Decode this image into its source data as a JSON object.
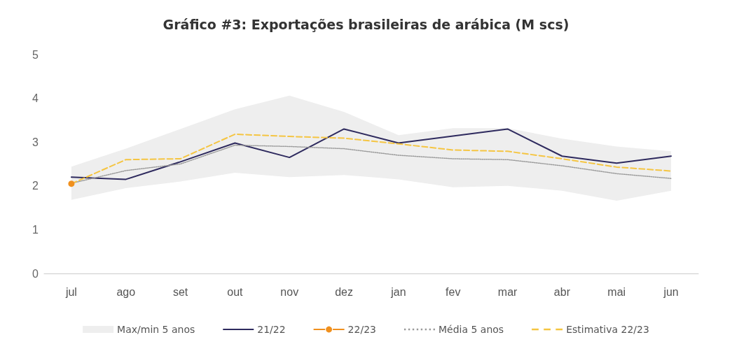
{
  "chart_data": {
    "type": "line",
    "title": "Gráfico #3: Exportações brasileiras de arábica (M scs)",
    "categories": [
      "jul",
      "ago",
      "set",
      "out",
      "nov",
      "dez",
      "jan",
      "fev",
      "mar",
      "abr",
      "mai",
      "jun"
    ],
    "ylim": [
      0,
      5
    ],
    "yticks": [
      0,
      1,
      2,
      3,
      4,
      5
    ],
    "grid": false,
    "legend": "bottom",
    "series": [
      {
        "name": "Max/min 5 anos",
        "type": "area",
        "color": "#eeeeee",
        "values": [
          null,
          null,
          null,
          null,
          null,
          null,
          null,
          null,
          null,
          null,
          null,
          null
        ],
        "lower": [
          1.68,
          1.95,
          2.1,
          2.3,
          2.2,
          2.25,
          2.15,
          1.97,
          2.0,
          1.89,
          1.66,
          1.89
        ],
        "upper": [
          2.44,
          2.85,
          3.3,
          3.75,
          4.06,
          3.69,
          3.16,
          3.32,
          3.32,
          3.08,
          2.9,
          2.79
        ]
      },
      {
        "name": "21/22",
        "color": "#2e2a5e",
        "marker": "none",
        "line_style": "solid",
        "values": [
          2.2,
          2.15,
          2.55,
          2.98,
          2.65,
          3.3,
          2.98,
          3.14,
          3.3,
          2.68,
          2.52,
          2.68
        ]
      },
      {
        "name": "22/23",
        "color": "#f0901e",
        "marker": "circle",
        "line_style": "solid",
        "values": [
          2.05,
          null,
          null,
          null,
          null,
          null,
          null,
          null,
          null,
          null,
          null,
          null
        ]
      },
      {
        "name": "Média 5 anos",
        "color": "#9a9a9a",
        "marker": "none",
        "line_style": "dotted",
        "values": [
          2.06,
          2.35,
          2.5,
          2.93,
          2.9,
          2.85,
          2.7,
          2.62,
          2.6,
          2.46,
          2.28,
          2.17
        ]
      },
      {
        "name": "Estimativa 22/23",
        "color": "#f5c542",
        "marker": "none",
        "line_style": "dashed",
        "values": [
          2.05,
          2.6,
          2.62,
          3.18,
          3.13,
          3.09,
          2.96,
          2.82,
          2.79,
          2.62,
          2.43,
          2.34
        ]
      }
    ]
  }
}
